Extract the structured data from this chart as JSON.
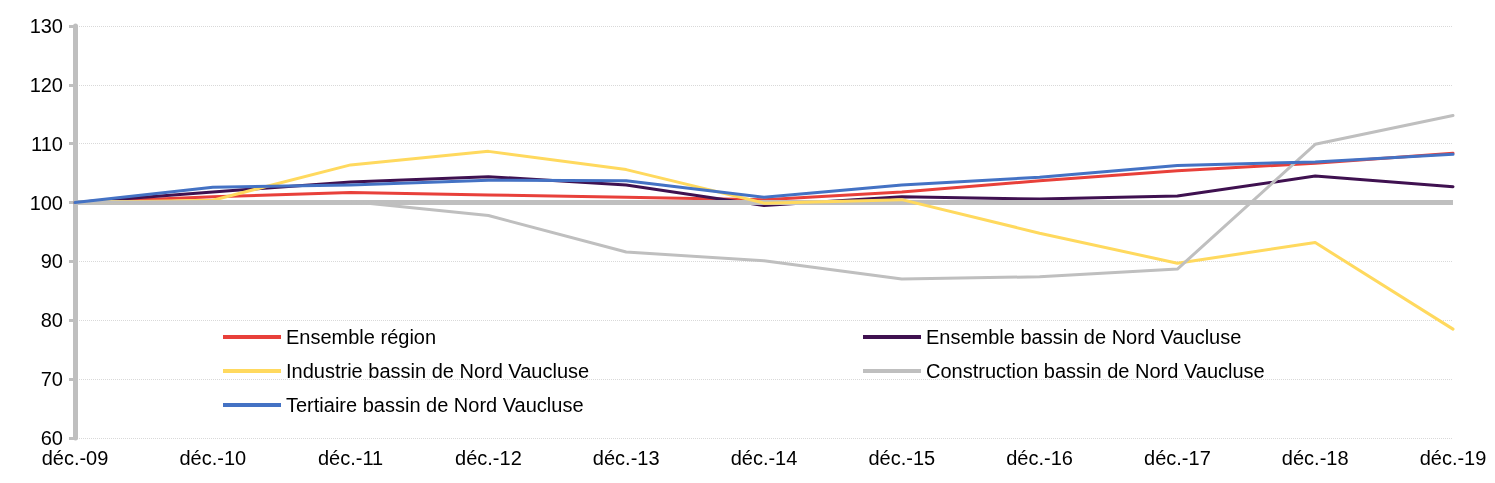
{
  "chart_data": {
    "type": "line",
    "categories": [
      "déc.-09",
      "déc.-10",
      "déc.-11",
      "déc.-12",
      "déc.-13",
      "déc.-14",
      "déc.-15",
      "déc.-16",
      "déc.-17",
      "déc.-18",
      "déc.-19"
    ],
    "series": [
      {
        "name": "Ensemble région",
        "color": "#e8403a",
        "values": [
          100,
          101,
          101.7,
          101.3,
          100.9,
          100.5,
          101.8,
          103.7,
          105.4,
          106.7,
          108.4
        ]
      },
      {
        "name": "Ensemble bassin de Nord Vaucluse",
        "color": "#3f1150",
        "values": [
          100,
          101.8,
          103.5,
          104.4,
          103.0,
          99.5,
          101.0,
          100.6,
          101.1,
          104.5,
          102.7
        ]
      },
      {
        "name": "Industrie bassin de Nord Vaucluse",
        "color": "#ffd95e",
        "values": [
          100,
          100.4,
          106.4,
          108.7,
          105.6,
          99.9,
          100.5,
          94.8,
          89.7,
          93.2,
          78.5
        ]
      },
      {
        "name": "Construction bassin de Nord Vaucluse",
        "color": "#bfbfbf",
        "values": [
          100,
          100.2,
          100.2,
          97.8,
          91.6,
          90.1,
          87.0,
          87.4,
          88.7,
          109.9,
          114.8
        ]
      },
      {
        "name": "Tertiaire bassin de Nord Vaucluse",
        "color": "#4472c4",
        "values": [
          100,
          102.6,
          103.0,
          103.8,
          103.7,
          100.9,
          103.0,
          104.3,
          106.3,
          106.9,
          108.2
        ]
      }
    ],
    "ylim": [
      60,
      130
    ],
    "yticks": [
      60,
      70,
      80,
      90,
      100,
      110,
      120,
      130
    ],
    "ref_lines": [
      {
        "axis": "y",
        "value": 100,
        "color": "#bfbfbf"
      }
    ],
    "grid": "y",
    "legend": "bottom",
    "marker": "none",
    "line_style": "solid"
  }
}
